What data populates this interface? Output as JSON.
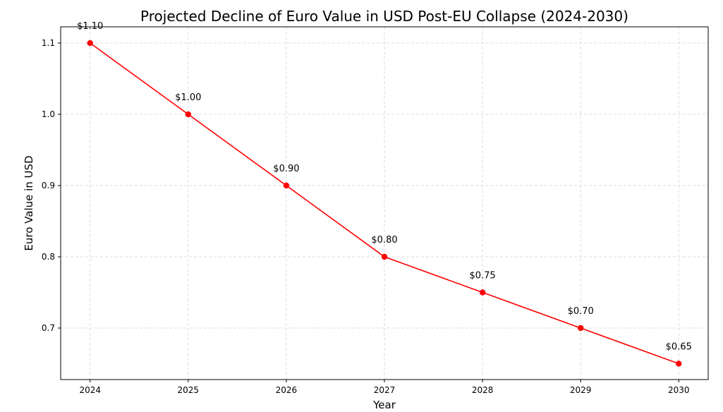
{
  "chart_data": {
    "type": "line",
    "title": "Projected Decline of Euro Value in USD Post-EU Collapse (2024-2030)",
    "xlabel": "Year",
    "ylabel": "Euro Value in USD",
    "x": [
      2024,
      2025,
      2026,
      2027,
      2028,
      2029,
      2030
    ],
    "series": [
      {
        "values": [
          1.1,
          1.0,
          0.9,
          0.8,
          0.75,
          0.7,
          0.65
        ],
        "color": "#ff0000",
        "marker": "circle"
      }
    ],
    "data_labels": [
      "$1.10",
      "$1.00",
      "$0.90",
      "$0.80",
      "$0.75",
      "$0.70",
      "$0.65"
    ],
    "xticks": [
      "2024",
      "2025",
      "2026",
      "2027",
      "2028",
      "2029",
      "2030"
    ],
    "yticks": [
      "0.7",
      "0.8",
      "0.9",
      "1.0",
      "1.1"
    ],
    "ytick_values": [
      0.7,
      0.8,
      0.9,
      1.0,
      1.1
    ],
    "xlim": [
      2023.7,
      2030.3
    ],
    "ylim": [
      0.6277,
      1.1228
    ],
    "grid": true,
    "grid_style": "dashed"
  }
}
